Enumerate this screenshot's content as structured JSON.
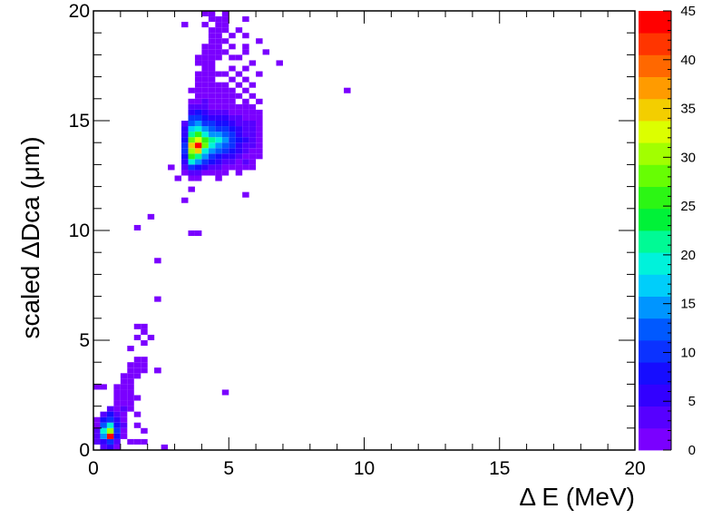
{
  "chart_data": {
    "type": "heatmap",
    "title": "",
    "xlabel": "Δ E (MeV)",
    "ylabel": "scaled ΔDca (μm)",
    "xlim": [
      0,
      20
    ],
    "ylim": [
      0,
      20
    ],
    "zlim": [
      0,
      45
    ],
    "x_ticks": [
      "0",
      "5",
      "10",
      "15",
      "20"
    ],
    "y_ticks": [
      "0",
      "5",
      "10",
      "15",
      "20"
    ],
    "z_ticks": [
      "0",
      "5",
      "10",
      "15",
      "20",
      "25",
      "30",
      "35",
      "40",
      "45"
    ],
    "bin_width": 0.25,
    "cells": [
      [
        0.25,
        0.0,
        3
      ],
      [
        0.5,
        0.0,
        5
      ],
      [
        0.75,
        0.0,
        2
      ],
      [
        2.5,
        0.0,
        1
      ],
      [
        0.0,
        0.25,
        3
      ],
      [
        0.25,
        0.25,
        6
      ],
      [
        0.5,
        0.25,
        10
      ],
      [
        0.75,
        0.25,
        4
      ],
      [
        1.25,
        0.25,
        1
      ],
      [
        1.5,
        0.25,
        1
      ],
      [
        1.75,
        0.25,
        1
      ],
      [
        0.0,
        0.5,
        4
      ],
      [
        0.25,
        0.5,
        14
      ],
      [
        0.5,
        0.5,
        45
      ],
      [
        0.75,
        0.5,
        8
      ],
      [
        1.0,
        0.5,
        2
      ],
      [
        0.0,
        0.75,
        3
      ],
      [
        0.25,
        0.75,
        20
      ],
      [
        0.5,
        0.75,
        30
      ],
      [
        0.75,
        0.75,
        10
      ],
      [
        1.0,
        0.75,
        2
      ],
      [
        1.75,
        0.75,
        1
      ],
      [
        0.0,
        1.0,
        2
      ],
      [
        0.25,
        1.0,
        12
      ],
      [
        0.5,
        1.0,
        18
      ],
      [
        0.75,
        1.0,
        7
      ],
      [
        1.0,
        1.0,
        3
      ],
      [
        1.5,
        1.0,
        2
      ],
      [
        0.0,
        1.25,
        1
      ],
      [
        0.25,
        1.25,
        8
      ],
      [
        0.5,
        1.25,
        11
      ],
      [
        0.75,
        1.25,
        5
      ],
      [
        1.0,
        1.25,
        2
      ],
      [
        0.25,
        1.5,
        4
      ],
      [
        0.5,
        1.5,
        7
      ],
      [
        0.75,
        1.5,
        3
      ],
      [
        1.0,
        1.5,
        2
      ],
      [
        1.5,
        1.5,
        1
      ],
      [
        0.5,
        1.75,
        3
      ],
      [
        0.75,
        1.75,
        2
      ],
      [
        1.0,
        1.75,
        3
      ],
      [
        1.25,
        1.75,
        1
      ],
      [
        0.75,
        2.0,
        2
      ],
      [
        1.0,
        2.0,
        2
      ],
      [
        1.25,
        2.0,
        1
      ],
      [
        0.75,
        2.25,
        1
      ],
      [
        1.0,
        2.25,
        2
      ],
      [
        1.25,
        2.25,
        1
      ],
      [
        1.5,
        2.25,
        1
      ],
      [
        0.75,
        2.5,
        2
      ],
      [
        1.0,
        2.5,
        2
      ],
      [
        1.25,
        2.5,
        1
      ],
      [
        4.75,
        2.5,
        1
      ],
      [
        0.0,
        2.75,
        2
      ],
      [
        0.25,
        2.75,
        1
      ],
      [
        0.75,
        2.75,
        2
      ],
      [
        1.0,
        2.75,
        1
      ],
      [
        1.25,
        2.75,
        1
      ],
      [
        1.0,
        3.0,
        1
      ],
      [
        1.25,
        3.0,
        2
      ],
      [
        1.0,
        3.25,
        2
      ],
      [
        1.25,
        3.25,
        1
      ],
      [
        1.5,
        3.25,
        1
      ],
      [
        2.25,
        3.5,
        1
      ],
      [
        1.25,
        3.5,
        1
      ],
      [
        1.5,
        3.5,
        1
      ],
      [
        1.75,
        3.5,
        1
      ],
      [
        2.25,
        3.5,
        1
      ],
      [
        1.25,
        3.75,
        1
      ],
      [
        1.5,
        3.75,
        2
      ],
      [
        1.75,
        3.75,
        1
      ],
      [
        1.5,
        4.0,
        1
      ],
      [
        1.75,
        4.0,
        1
      ],
      [
        1.75,
        4.75,
        1
      ],
      [
        1.5,
        5.0,
        1
      ],
      [
        2.0,
        5.0,
        1
      ],
      [
        1.75,
        5.25,
        1
      ],
      [
        1.5,
        5.5,
        1
      ],
      [
        1.75,
        5.5,
        1
      ],
      [
        1.25,
        4.5,
        1
      ],
      [
        2.25,
        6.75,
        1
      ],
      [
        2.25,
        8.5,
        1
      ],
      [
        1.5,
        10.0,
        1
      ],
      [
        2.0,
        10.5,
        1
      ],
      [
        3.5,
        9.75,
        1
      ],
      [
        3.75,
        9.75,
        1
      ],
      [
        3.25,
        11.25,
        1
      ],
      [
        3.5,
        11.75,
        1
      ],
      [
        2.75,
        12.75,
        1
      ],
      [
        4.5,
        12.25,
        1
      ],
      [
        3.0,
        12.25,
        1
      ],
      [
        5.5,
        11.5,
        1
      ],
      [
        4.0,
        12.5,
        1
      ],
      [
        4.75,
        12.5,
        1
      ],
      [
        5.25,
        12.5,
        1
      ],
      [
        3.5,
        12.25,
        1
      ],
      [
        3.75,
        12.25,
        1
      ],
      [
        4.5,
        12.5,
        1
      ],
      [
        9.25,
        16.25,
        1
      ],
      [
        6.75,
        17.5,
        1
      ],
      [
        3.25,
        12.5,
        2
      ],
      [
        3.5,
        12.5,
        4
      ],
      [
        3.75,
        12.5,
        3
      ],
      [
        4.0,
        12.5,
        2
      ],
      [
        4.25,
        12.5,
        1
      ],
      [
        3.25,
        12.75,
        3
      ],
      [
        3.5,
        12.75,
        9
      ],
      [
        3.75,
        12.75,
        8
      ],
      [
        4.0,
        12.75,
        6
      ],
      [
        4.25,
        12.75,
        4
      ],
      [
        4.5,
        12.75,
        3
      ],
      [
        4.75,
        12.75,
        2
      ],
      [
        5.0,
        12.75,
        2
      ],
      [
        5.25,
        12.75,
        1
      ],
      [
        5.5,
        12.75,
        2
      ],
      [
        5.75,
        12.75,
        1
      ],
      [
        3.25,
        13.0,
        5
      ],
      [
        3.5,
        13.0,
        20
      ],
      [
        3.75,
        13.0,
        15
      ],
      [
        4.0,
        13.0,
        10
      ],
      [
        4.25,
        13.0,
        7
      ],
      [
        4.5,
        13.0,
        5
      ],
      [
        4.75,
        13.0,
        4
      ],
      [
        5.0,
        13.0,
        3
      ],
      [
        5.25,
        13.0,
        2
      ],
      [
        5.5,
        13.0,
        3
      ],
      [
        5.75,
        13.0,
        1
      ],
      [
        3.25,
        13.25,
        7
      ],
      [
        3.5,
        13.25,
        25
      ],
      [
        3.75,
        13.25,
        22
      ],
      [
        4.0,
        13.25,
        15
      ],
      [
        4.25,
        13.25,
        11
      ],
      [
        4.5,
        13.25,
        8
      ],
      [
        4.75,
        13.25,
        6
      ],
      [
        5.0,
        13.25,
        5
      ],
      [
        5.25,
        13.25,
        3
      ],
      [
        5.5,
        13.25,
        2
      ],
      [
        5.75,
        13.25,
        2
      ],
      [
        6.0,
        13.25,
        1
      ],
      [
        3.25,
        13.5,
        9
      ],
      [
        3.5,
        13.5,
        30
      ],
      [
        3.75,
        13.5,
        35
      ],
      [
        4.0,
        13.5,
        20
      ],
      [
        4.25,
        13.5,
        15
      ],
      [
        4.5,
        13.5,
        12
      ],
      [
        4.75,
        13.5,
        10
      ],
      [
        5.0,
        13.5,
        8
      ],
      [
        5.25,
        13.5,
        5
      ],
      [
        5.5,
        13.5,
        3
      ],
      [
        5.75,
        13.5,
        2
      ],
      [
        6.0,
        13.5,
        1
      ],
      [
        3.25,
        13.75,
        10
      ],
      [
        3.5,
        13.75,
        35
      ],
      [
        3.75,
        13.75,
        45
      ],
      [
        4.0,
        13.75,
        28
      ],
      [
        4.25,
        13.75,
        18
      ],
      [
        4.5,
        13.75,
        15
      ],
      [
        4.75,
        13.75,
        12
      ],
      [
        5.0,
        13.75,
        10
      ],
      [
        5.25,
        13.75,
        6
      ],
      [
        5.5,
        13.75,
        4
      ],
      [
        5.75,
        13.75,
        3
      ],
      [
        6.0,
        13.75,
        2
      ],
      [
        3.25,
        14.0,
        8
      ],
      [
        3.5,
        14.0,
        28
      ],
      [
        3.75,
        14.0,
        32
      ],
      [
        4.0,
        14.0,
        25
      ],
      [
        4.25,
        14.0,
        22
      ],
      [
        4.5,
        14.0,
        18
      ],
      [
        4.75,
        14.0,
        14
      ],
      [
        5.0,
        14.0,
        11
      ],
      [
        5.25,
        14.0,
        7
      ],
      [
        5.5,
        14.0,
        5
      ],
      [
        5.75,
        14.0,
        3
      ],
      [
        6.0,
        14.0,
        1
      ],
      [
        3.25,
        14.25,
        6
      ],
      [
        3.5,
        14.25,
        22
      ],
      [
        3.75,
        14.25,
        25
      ],
      [
        4.0,
        14.25,
        18
      ],
      [
        4.25,
        14.25,
        15
      ],
      [
        4.5,
        14.25,
        14
      ],
      [
        4.75,
        14.25,
        12
      ],
      [
        5.0,
        14.25,
        9
      ],
      [
        5.25,
        14.25,
        6
      ],
      [
        5.5,
        14.25,
        4
      ],
      [
        5.75,
        14.25,
        3
      ],
      [
        6.0,
        14.25,
        2
      ],
      [
        3.25,
        14.5,
        5
      ],
      [
        3.5,
        14.5,
        16
      ],
      [
        3.75,
        14.5,
        18
      ],
      [
        4.0,
        14.5,
        14
      ],
      [
        4.25,
        14.5,
        12
      ],
      [
        4.5,
        14.5,
        11
      ],
      [
        4.75,
        14.5,
        10
      ],
      [
        5.0,
        14.5,
        8
      ],
      [
        5.25,
        14.5,
        6
      ],
      [
        5.5,
        14.5,
        4
      ],
      [
        5.75,
        14.5,
        3
      ],
      [
        6.0,
        14.5,
        1
      ],
      [
        3.25,
        14.75,
        4
      ],
      [
        3.5,
        14.75,
        12
      ],
      [
        3.75,
        14.75,
        14
      ],
      [
        4.0,
        14.75,
        10
      ],
      [
        4.25,
        14.75,
        9
      ],
      [
        4.5,
        14.75,
        8
      ],
      [
        4.75,
        14.75,
        7
      ],
      [
        5.0,
        14.75,
        6
      ],
      [
        5.25,
        14.75,
        4
      ],
      [
        5.5,
        14.75,
        3
      ],
      [
        5.75,
        14.75,
        3
      ],
      [
        6.0,
        14.75,
        2
      ],
      [
        3.5,
        15.0,
        9
      ],
      [
        3.75,
        15.0,
        10
      ],
      [
        4.0,
        15.0,
        8
      ],
      [
        4.25,
        15.0,
        6
      ],
      [
        4.5,
        15.0,
        5
      ],
      [
        4.75,
        15.0,
        5
      ],
      [
        5.0,
        15.0,
        4
      ],
      [
        5.25,
        15.0,
        3
      ],
      [
        5.5,
        15.0,
        2
      ],
      [
        5.75,
        15.0,
        1
      ],
      [
        6.0,
        15.0,
        2
      ],
      [
        3.5,
        15.25,
        6
      ],
      [
        3.75,
        15.25,
        7
      ],
      [
        4.0,
        15.25,
        5
      ],
      [
        4.25,
        15.25,
        4
      ],
      [
        4.5,
        15.25,
        3
      ],
      [
        4.75,
        15.25,
        3
      ],
      [
        5.0,
        15.25,
        2
      ],
      [
        5.25,
        15.25,
        2
      ],
      [
        5.5,
        15.25,
        1
      ],
      [
        5.75,
        15.25,
        1
      ],
      [
        6.0,
        15.25,
        1
      ],
      [
        3.5,
        15.5,
        3
      ],
      [
        3.75,
        15.5,
        4
      ],
      [
        4.0,
        15.5,
        3
      ],
      [
        4.25,
        15.5,
        2
      ],
      [
        4.5,
        15.5,
        2
      ],
      [
        4.75,
        15.5,
        2
      ],
      [
        5.0,
        15.5,
        1
      ],
      [
        5.25,
        15.5,
        1
      ],
      [
        5.5,
        15.5,
        1
      ],
      [
        5.75,
        15.5,
        2
      ],
      [
        3.5,
        15.75,
        2
      ],
      [
        3.75,
        15.75,
        2
      ],
      [
        4.0,
        15.75,
        3
      ],
      [
        4.25,
        15.75,
        2
      ],
      [
        4.5,
        15.75,
        1
      ],
      [
        4.75,
        15.75,
        1
      ],
      [
        5.0,
        15.75,
        1
      ],
      [
        5.5,
        15.75,
        1
      ],
      [
        6.0,
        15.75,
        1
      ],
      [
        3.75,
        16.0,
        2
      ],
      [
        4.0,
        16.0,
        2
      ],
      [
        4.25,
        16.0,
        1
      ],
      [
        4.5,
        16.0,
        2
      ],
      [
        4.75,
        16.0,
        1
      ],
      [
        5.0,
        16.0,
        1
      ],
      [
        5.25,
        16.0,
        1
      ],
      [
        5.75,
        16.0,
        1
      ],
      [
        3.5,
        16.25,
        1
      ],
      [
        3.75,
        16.25,
        1
      ],
      [
        4.0,
        16.25,
        2
      ],
      [
        4.25,
        16.25,
        1
      ],
      [
        4.5,
        16.25,
        1
      ],
      [
        4.75,
        16.25,
        1
      ],
      [
        5.0,
        16.25,
        1
      ],
      [
        5.5,
        16.25,
        1
      ],
      [
        3.75,
        16.5,
        1
      ],
      [
        4.0,
        16.5,
        2
      ],
      [
        4.25,
        16.5,
        2
      ],
      [
        4.5,
        16.5,
        1
      ],
      [
        4.75,
        16.5,
        1
      ],
      [
        5.25,
        16.5,
        1
      ],
      [
        5.75,
        16.5,
        1
      ],
      [
        3.75,
        16.75,
        1
      ],
      [
        4.0,
        16.75,
        1
      ],
      [
        4.25,
        16.75,
        1
      ],
      [
        5.0,
        16.75,
        1
      ],
      [
        5.5,
        16.75,
        1
      ],
      [
        3.75,
        17.0,
        1
      ],
      [
        4.0,
        17.0,
        2
      ],
      [
        4.25,
        17.0,
        1
      ],
      [
        4.5,
        17.0,
        1
      ],
      [
        4.75,
        17.0,
        1
      ],
      [
        5.25,
        17.0,
        1
      ],
      [
        6.0,
        17.0,
        1
      ],
      [
        4.0,
        17.25,
        1
      ],
      [
        4.25,
        17.25,
        1
      ],
      [
        5.0,
        17.25,
        1
      ],
      [
        5.5,
        17.25,
        1
      ],
      [
        3.75,
        17.5,
        1
      ],
      [
        4.0,
        17.5,
        1
      ],
      [
        4.25,
        17.5,
        1
      ],
      [
        5.75,
        17.5,
        1
      ],
      [
        3.75,
        17.75,
        1
      ],
      [
        4.0,
        17.75,
        1
      ],
      [
        4.25,
        17.75,
        1
      ],
      [
        4.5,
        17.75,
        1
      ],
      [
        5.0,
        17.75,
        1
      ],
      [
        5.25,
        17.75,
        1
      ],
      [
        4.0,
        18.0,
        1
      ],
      [
        4.25,
        18.0,
        1
      ],
      [
        4.5,
        18.0,
        1
      ],
      [
        4.75,
        18.0,
        1
      ],
      [
        5.5,
        18.0,
        1
      ],
      [
        6.25,
        18.0,
        1
      ],
      [
        4.0,
        18.25,
        1
      ],
      [
        4.25,
        18.25,
        1
      ],
      [
        4.5,
        18.25,
        1
      ],
      [
        5.0,
        18.25,
        1
      ],
      [
        5.5,
        18.25,
        1
      ],
      [
        4.25,
        18.5,
        1
      ],
      [
        4.5,
        18.5,
        1
      ],
      [
        4.75,
        18.5,
        1
      ],
      [
        6.0,
        18.5,
        1
      ],
      [
        4.25,
        18.75,
        1
      ],
      [
        4.5,
        18.75,
        1
      ],
      [
        5.0,
        18.75,
        1
      ],
      [
        5.5,
        18.75,
        1
      ],
      [
        4.25,
        19.0,
        1
      ],
      [
        4.5,
        19.0,
        1
      ],
      [
        4.75,
        19.0,
        1
      ],
      [
        5.25,
        19.0,
        1
      ],
      [
        4.0,
        19.25,
        1
      ],
      [
        4.5,
        19.25,
        1
      ],
      [
        4.75,
        19.25,
        1
      ],
      [
        3.25,
        19.25,
        1
      ],
      [
        4.25,
        19.5,
        1
      ],
      [
        4.5,
        19.5,
        1
      ],
      [
        4.75,
        19.5,
        1
      ],
      [
        5.5,
        19.5,
        1
      ],
      [
        4.0,
        19.75,
        1
      ],
      [
        4.25,
        19.75,
        1
      ],
      [
        4.75,
        19.75,
        1
      ]
    ]
  }
}
